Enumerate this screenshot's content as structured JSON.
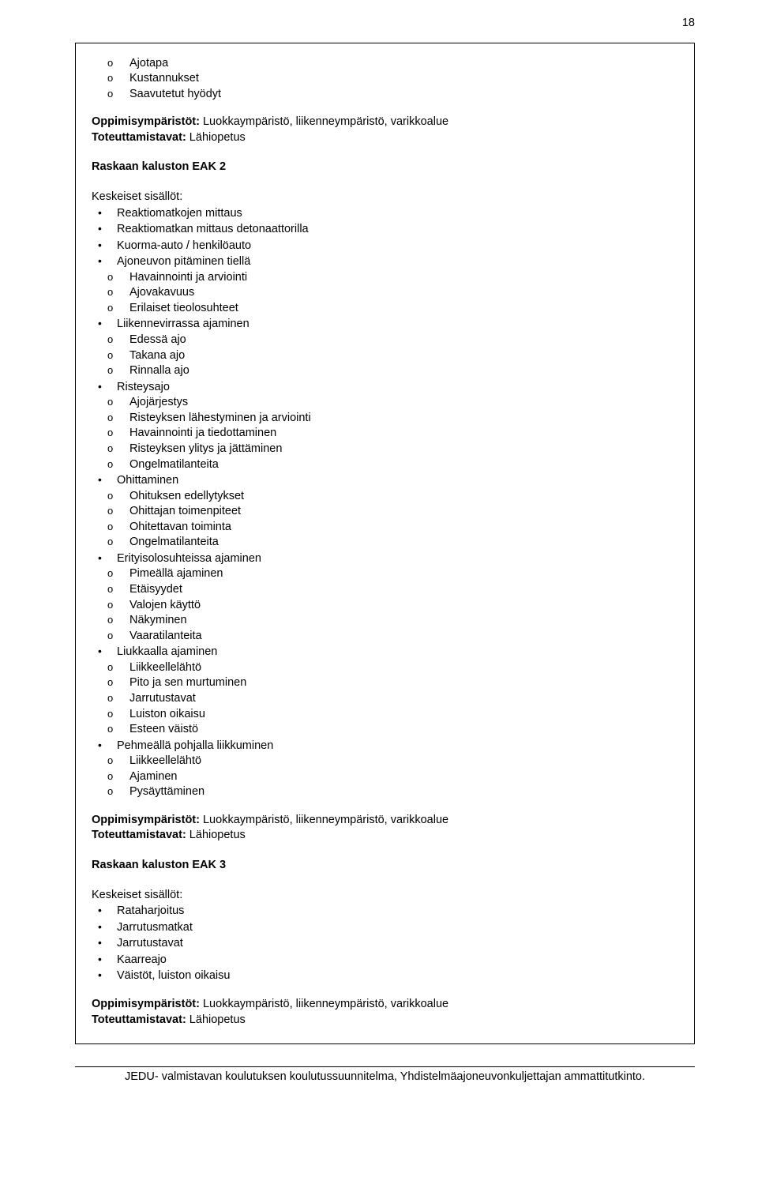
{
  "pageNumber": "18",
  "topSub": [
    "Ajotapa",
    "Kustannukset",
    "Saavutetut hyödyt"
  ],
  "envLabel": "Oppimisympäristöt:",
  "envValue": " Luokkaympäristö, liikenneympäristö, varikkoalue",
  "implLabel": "Toteuttamistavat:",
  "implValue": " Lähiopetus",
  "eak2Title": "Raskaan kaluston EAK 2",
  "keyContentLabel": "Keskeiset sisällöt:",
  "eak2": {
    "i0": "Reaktiomatkojen mittaus",
    "i1": "Reaktiomatkan mittaus detonaattorilla",
    "i2": "Kuorma-auto / henkilöauto",
    "i3": "Ajoneuvon pitäminen tiellä",
    "i3s": [
      "Havainnointi ja arviointi",
      "Ajovakavuus",
      "Erilaiset tieolosuhteet"
    ],
    "i4": "Liikennevirrassa ajaminen",
    "i4s": [
      "Edessä ajo",
      "Takana ajo",
      "Rinnalla ajo"
    ],
    "i5": "Risteysajo",
    "i5s": [
      "Ajojärjestys",
      "Risteyksen lähestyminen ja arviointi",
      "Havainnointi ja tiedottaminen",
      "Risteyksen ylitys ja jättäminen",
      "Ongelmatilanteita"
    ],
    "i6": "Ohittaminen",
    "i6s": [
      "Ohituksen edellytykset",
      "Ohittajan toimenpiteet",
      "Ohitettavan toiminta",
      "Ongelmatilanteita"
    ],
    "i7": "Erityisolosuhteissa ajaminen",
    "i7s": [
      "Pimeällä ajaminen",
      "Etäisyydet",
      "Valojen käyttö",
      "Näkyminen",
      "Vaaratilanteita"
    ],
    "i8": "Liukkaalla ajaminen",
    "i8s": [
      "Liikkeellelähtö",
      "Pito ja sen murtuminen",
      "Jarrutustavat",
      "Luiston oikaisu",
      "Esteen väistö"
    ],
    "i9": "Pehmeällä pohjalla liikkuminen",
    "i9s": [
      "Liikkeellelähtö",
      "Ajaminen",
      "Pysäyttäminen"
    ]
  },
  "eak3Title": "Raskaan kaluston EAK 3",
  "eak3Items": [
    "Rataharjoitus",
    "Jarrutusmatkat",
    "Jarrutustavat",
    "Kaarreajo",
    "Väistöt, luiston oikaisu"
  ],
  "footerText": "JEDU- valmistavan koulutuksen koulutussuunnitelma, Yhdistelmäajoneuvonkuljettajan ammattitutkinto."
}
